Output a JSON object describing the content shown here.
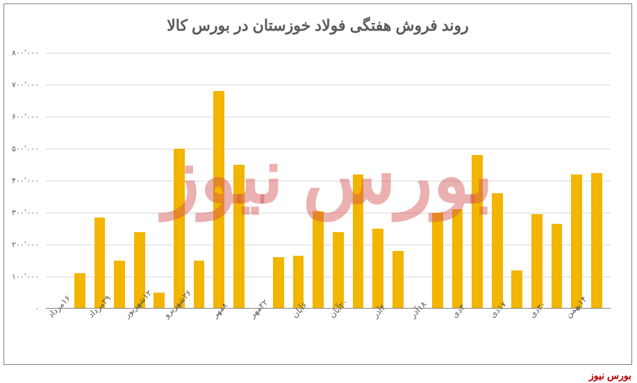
{
  "chart": {
    "type": "bar",
    "title": "روند فروش هفتگی فولاد خوزستان در بورس کالا",
    "title_fontsize": 22,
    "title_color": "#595959",
    "background_color": "#ffffff",
    "border_color": "#808080",
    "grid_color": "#d9d9d9",
    "bar_color": "#f2b500",
    "axis_label_color": "#595959",
    "axis_fontsize": 11,
    "ylim": [
      0,
      800000
    ],
    "ytick_step": 100000,
    "yticks": [
      {
        "v": 0,
        "label": "۰"
      },
      {
        "v": 100000,
        "label": "۱۰۰٬۰۰۰"
      },
      {
        "v": 200000,
        "label": "۲۰۰٬۰۰۰"
      },
      {
        "v": 300000,
        "label": "۳۰۰٬۰۰۰"
      },
      {
        "v": 400000,
        "label": "۴۰۰٬۰۰۰"
      },
      {
        "v": 500000,
        "label": "۵۰۰٬۰۰۰"
      },
      {
        "v": 600000,
        "label": "۶۰۰٬۰۰۰"
      },
      {
        "v": 700000,
        "label": "۷۰۰٬۰۰۰"
      },
      {
        "v": 800000,
        "label": "۸۰۰٬۰۰۰"
      }
    ],
    "categories": [
      "۱۶مرداد",
      "",
      "۲۹مرداد",
      "",
      "۱۲شهریور",
      "",
      "۲۶شهریرو",
      "",
      "۸مهر",
      "",
      "۲۲مهر",
      "",
      "۶آبان",
      "",
      "۲۰آبان",
      "",
      "۴آذر",
      "",
      "۱۸آذر",
      "",
      "۳دی",
      "",
      "۱۷دی",
      "",
      "۳۰دی",
      "",
      "۱۴بهمن",
      ""
    ],
    "values": [
      0,
      110000,
      285000,
      150000,
      240000,
      50000,
      500000,
      150000,
      680000,
      450000,
      0,
      160000,
      165000,
      305000,
      240000,
      420000,
      250000,
      180000,
      0,
      300000,
      310000,
      480000,
      360000,
      120000,
      295000,
      265000,
      420000,
      425000
    ],
    "x_label_rotation": -45,
    "bar_width": 0.55
  },
  "watermark": {
    "text": "بورس نیوز",
    "color": "rgba(210,80,80,0.45)",
    "fontsize": 110
  },
  "source": {
    "text": "بورس نیوز",
    "color": "#c00000",
    "fontsize": 14
  }
}
